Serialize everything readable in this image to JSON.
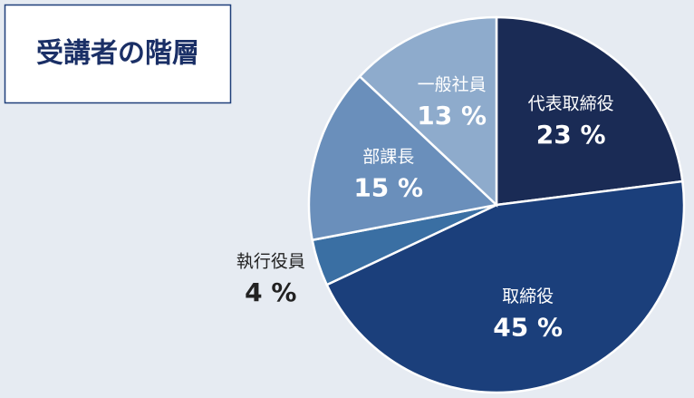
{
  "chart_data": {
    "type": "pie",
    "title": "受講者の階層",
    "categories": [
      "代表取締役",
      "取締役",
      "執行役員",
      "部課長",
      "一般社員"
    ],
    "values": [
      23,
      45,
      4,
      15,
      13
    ],
    "value_labels": [
      "23 %",
      "45 %",
      "4 %",
      "15 %",
      "13 %"
    ],
    "colors": [
      "#1a2b55",
      "#1b3f7b",
      "#3a6fa3",
      "#6a8fbb",
      "#8eabcc"
    ]
  }
}
